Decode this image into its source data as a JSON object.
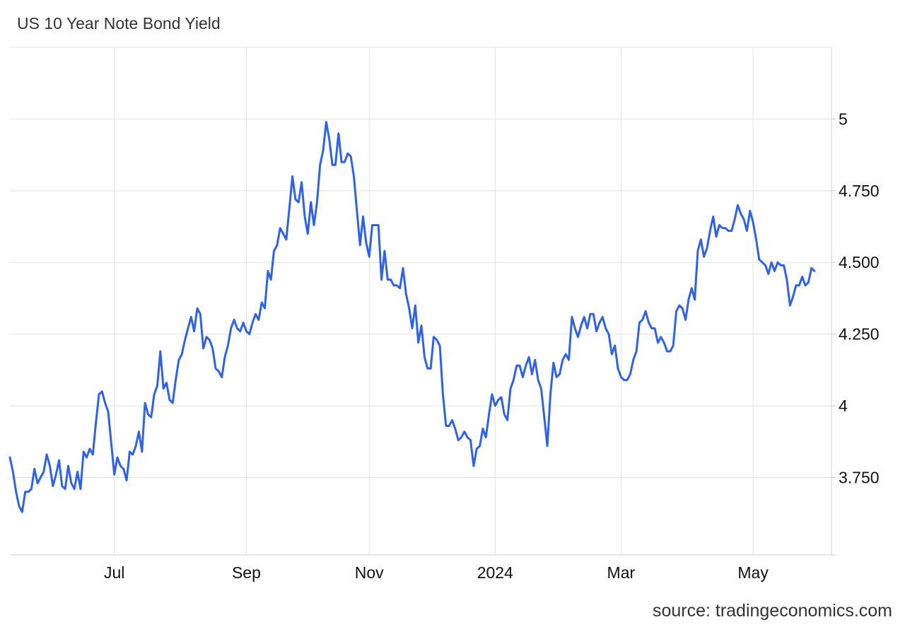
{
  "chart_data": {
    "type": "line",
    "title": "US 10 Year Note Bond Yield",
    "xlabel": "",
    "ylabel": "",
    "source": "source: tradingeconomics.com",
    "line_color": "#2f62e6",
    "grid": true,
    "x_axis": {
      "ticks": [
        {
          "label": "Jul",
          "index": 34
        },
        {
          "label": "Sep",
          "index": 77
        },
        {
          "label": "Nov",
          "index": 117
        },
        {
          "label": "2024",
          "index": 158
        },
        {
          "label": "Mar",
          "index": 199
        },
        {
          "label": "May",
          "index": 242
        }
      ]
    },
    "y_axis": {
      "ylim": [
        3.48,
        5.25
      ],
      "ticks": [
        {
          "label": "3.750",
          "value": 3.75
        },
        {
          "label": "4",
          "value": 4.0
        },
        {
          "label": "4.250",
          "value": 4.25
        },
        {
          "label": "4.500",
          "value": 4.5
        },
        {
          "label": "4.750",
          "value": 4.75
        },
        {
          "label": "5",
          "value": 5.0
        }
      ]
    },
    "series": [
      {
        "values": [
          3.82,
          3.77,
          3.7,
          3.65,
          3.63,
          3.7,
          3.7,
          3.71,
          3.78,
          3.73,
          3.75,
          3.77,
          3.83,
          3.79,
          3.72,
          3.76,
          3.81,
          3.72,
          3.71,
          3.79,
          3.73,
          3.71,
          3.77,
          3.71,
          3.84,
          3.82,
          3.85,
          3.83,
          3.94,
          4.04,
          4.05,
          4.01,
          3.98,
          3.87,
          3.76,
          3.82,
          3.79,
          3.78,
          3.74,
          3.84,
          3.83,
          3.86,
          3.91,
          3.84,
          4.01,
          3.97,
          3.96,
          4.04,
          4.07,
          4.19,
          4.06,
          4.08,
          4.02,
          4.01,
          4.09,
          4.16,
          4.18,
          4.23,
          4.27,
          4.31,
          4.26,
          4.34,
          4.32,
          4.2,
          4.24,
          4.23,
          4.2,
          4.13,
          4.12,
          4.1,
          4.17,
          4.21,
          4.27,
          4.3,
          4.27,
          4.26,
          4.29,
          4.26,
          4.25,
          4.29,
          4.32,
          4.3,
          4.36,
          4.34,
          4.47,
          4.44,
          4.54,
          4.56,
          4.62,
          4.6,
          4.58,
          4.69,
          4.8,
          4.72,
          4.71,
          4.78,
          4.66,
          4.6,
          4.71,
          4.63,
          4.71,
          4.84,
          4.89,
          4.99,
          4.93,
          4.84,
          4.84,
          4.95,
          4.85,
          4.85,
          4.88,
          4.87,
          4.8,
          4.68,
          4.56,
          4.66,
          4.57,
          4.52,
          4.63,
          4.63,
          4.63,
          4.44,
          4.54,
          4.44,
          4.44,
          4.42,
          4.42,
          4.41,
          4.48,
          4.39,
          4.34,
          4.27,
          4.35,
          4.22,
          4.28,
          4.17,
          4.13,
          4.13,
          4.24,
          4.23,
          4.21,
          4.04,
          3.93,
          3.93,
          3.95,
          3.92,
          3.88,
          3.89,
          3.91,
          3.89,
          3.88,
          3.79,
          3.85,
          3.86,
          3.92,
          3.89,
          3.97,
          4.04,
          4.0,
          4.02,
          4.03,
          3.97,
          3.95,
          4.06,
          4.09,
          4.14,
          4.14,
          4.1,
          4.14,
          4.17,
          4.11,
          4.16,
          4.09,
          4.06,
          3.96,
          3.86,
          4.04,
          4.15,
          4.1,
          4.11,
          4.16,
          4.18,
          4.16,
          4.31,
          4.27,
          4.24,
          4.28,
          4.31,
          4.27,
          4.32,
          4.32,
          4.26,
          4.29,
          4.31,
          4.27,
          4.25,
          4.18,
          4.21,
          4.13,
          4.1,
          4.09,
          4.09,
          4.11,
          4.16,
          4.19,
          4.29,
          4.3,
          4.33,
          4.29,
          4.27,
          4.27,
          4.22,
          4.24,
          4.22,
          4.19,
          4.19,
          4.21,
          4.33,
          4.35,
          4.34,
          4.3,
          4.37,
          4.41,
          4.37,
          4.54,
          4.58,
          4.52,
          4.55,
          4.61,
          4.66,
          4.59,
          4.63,
          4.62,
          4.62,
          4.61,
          4.61,
          4.65,
          4.7,
          4.67,
          4.65,
          4.61,
          4.68,
          4.64,
          4.58,
          4.51,
          4.5,
          4.49,
          4.46,
          4.5,
          4.47,
          4.5,
          4.49,
          4.49,
          4.44,
          4.35,
          4.38,
          4.42,
          4.42,
          4.45,
          4.42,
          4.43,
          4.48,
          4.47
        ]
      }
    ]
  }
}
